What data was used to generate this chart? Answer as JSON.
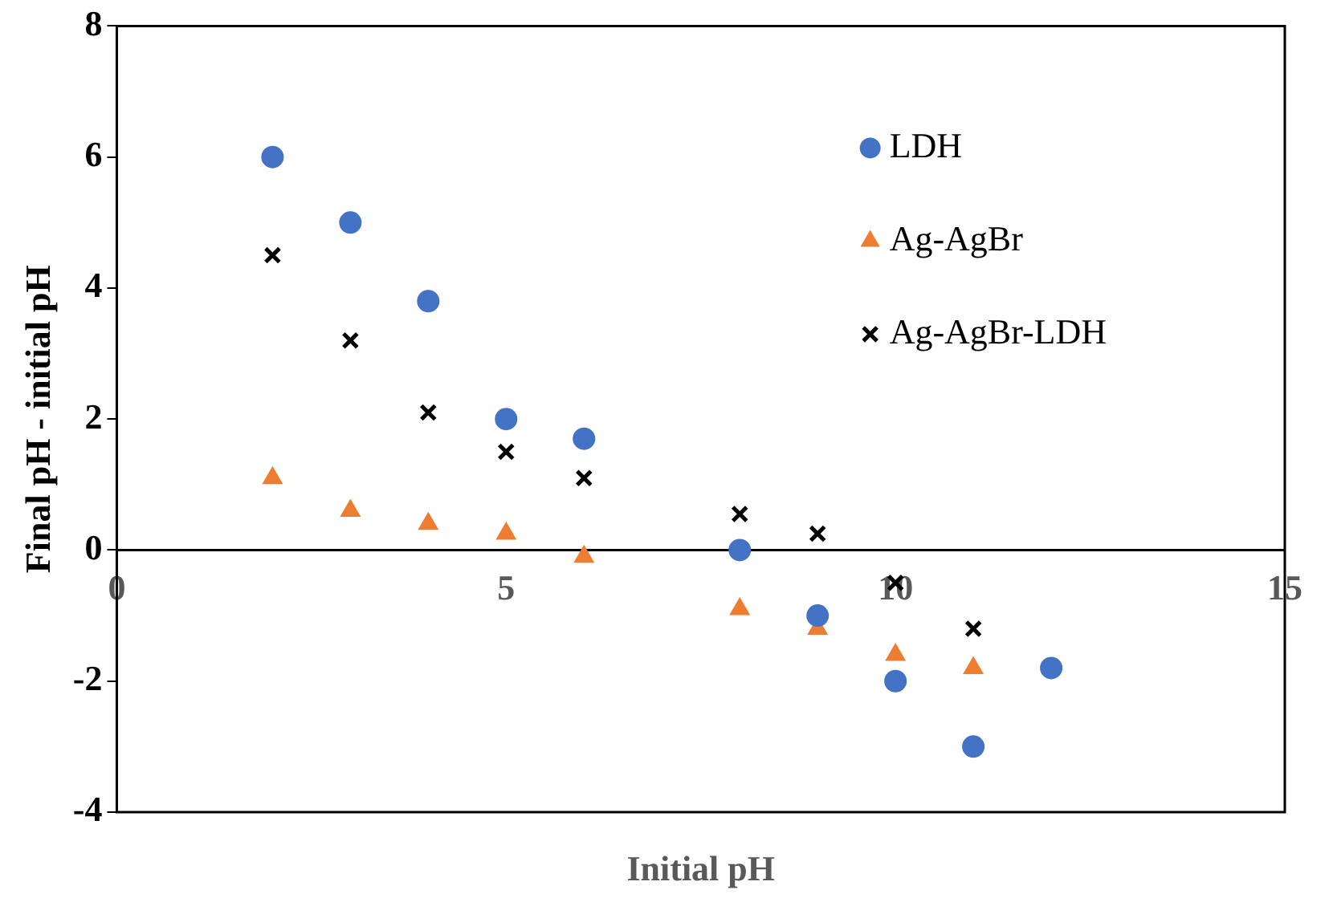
{
  "chart_data": {
    "type": "scatter",
    "xlabel": "Initial pH",
    "ylabel": "Final pH - initial pH",
    "xlim": [
      0,
      15
    ],
    "xticks": [
      0,
      5,
      10,
      15
    ],
    "ylim": [
      -4,
      8
    ],
    "yticks": [
      -4,
      -2,
      0,
      2,
      4,
      6,
      8
    ],
    "grid": false,
    "legend": "top right",
    "series": [
      {
        "name": "LDH",
        "color": "#4472c4",
        "marker": "circle",
        "x": [
          2,
          3,
          4,
          5,
          6,
          8,
          9,
          10,
          11,
          12
        ],
        "values": [
          6,
          5,
          3.8,
          2,
          1.7,
          0,
          -1,
          -2,
          -3,
          -1.8
        ]
      },
      {
        "name": "Ag-AgBr",
        "color": "#ed7d31",
        "marker": "triangle",
        "x": [
          2,
          3,
          4,
          5,
          6,
          8,
          9,
          10,
          11
        ],
        "values": [
          1.1,
          0.6,
          0.4,
          0.25,
          -0.1,
          -0.9,
          -1.2,
          -1.6,
          -1.8
        ]
      },
      {
        "name": "Ag-AgBr-LDH",
        "color": "#000000",
        "marker": "cross",
        "x": [
          2,
          3,
          4,
          5,
          6,
          8,
          9,
          10,
          11
        ],
        "values": [
          4.5,
          3.2,
          2.1,
          1.5,
          1.1,
          0.55,
          0.25,
          -0.5,
          -1.2
        ]
      }
    ]
  }
}
